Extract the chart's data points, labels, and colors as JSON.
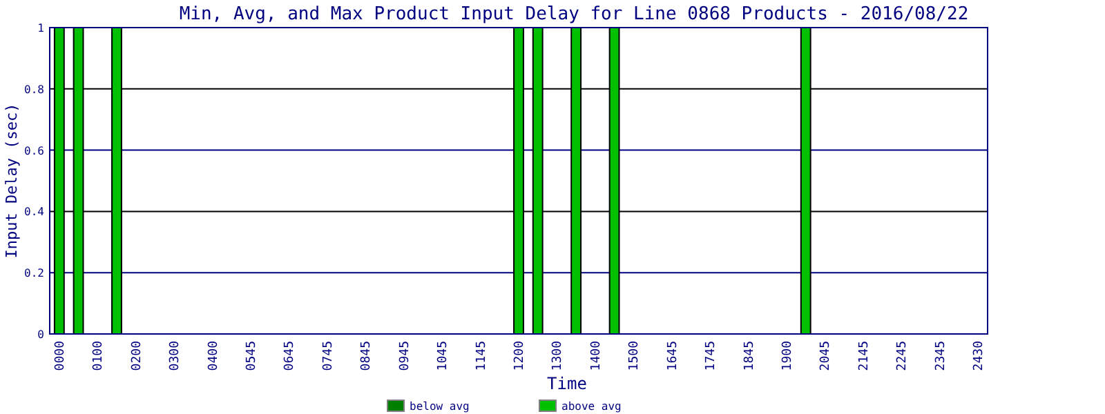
{
  "chart_data": {
    "type": "bar",
    "title": "Min, Avg, and Max Product Input Delay for Line 0868 Products - 2016/08/22",
    "xlabel": "Time",
    "ylabel": "Input Delay (sec)",
    "categories": [
      "0000",
      null,
      "0100",
      null,
      "0200",
      null,
      "0300",
      null,
      "0400",
      null,
      "0545",
      null,
      "0645",
      null,
      "0745",
      null,
      "0845",
      null,
      "0945",
      null,
      "1045",
      null,
      "1145",
      null,
      "1200",
      null,
      "1300",
      null,
      "1400",
      null,
      "1500",
      null,
      "1645",
      null,
      "1745",
      null,
      "1845",
      null,
      "1900",
      null,
      "2045",
      null,
      "2145",
      null,
      "2245",
      null,
      "2345",
      null,
      "2430"
    ],
    "series": [
      {
        "name": "below avg",
        "color": "#008000",
        "values": [
          null,
          null,
          null,
          null,
          null,
          null,
          null,
          null,
          null,
          null,
          null,
          null,
          null,
          null,
          null,
          null,
          null,
          null,
          null,
          null,
          null,
          null,
          null,
          null,
          null,
          null,
          null,
          null,
          null,
          null,
          null,
          null,
          null,
          null,
          null,
          null,
          null,
          null,
          null,
          null,
          null,
          null,
          null,
          null,
          null,
          null,
          null,
          null,
          null
        ]
      },
      {
        "name": "above avg",
        "color": "#00c000",
        "values": [
          1,
          1,
          null,
          1,
          null,
          null,
          null,
          null,
          null,
          null,
          null,
          null,
          null,
          null,
          null,
          null,
          null,
          null,
          null,
          null,
          null,
          null,
          null,
          null,
          1,
          1,
          null,
          1,
          null,
          1,
          null,
          null,
          null,
          null,
          null,
          null,
          null,
          null,
          null,
          1,
          null,
          null,
          null,
          null,
          null,
          null,
          null,
          null,
          null
        ]
      }
    ],
    "ylim": [
      0,
      1
    ],
    "yticks": [
      0,
      0.2,
      0.4,
      0.6,
      0.8,
      1
    ],
    "grid": "y",
    "legend": "bottom"
  }
}
